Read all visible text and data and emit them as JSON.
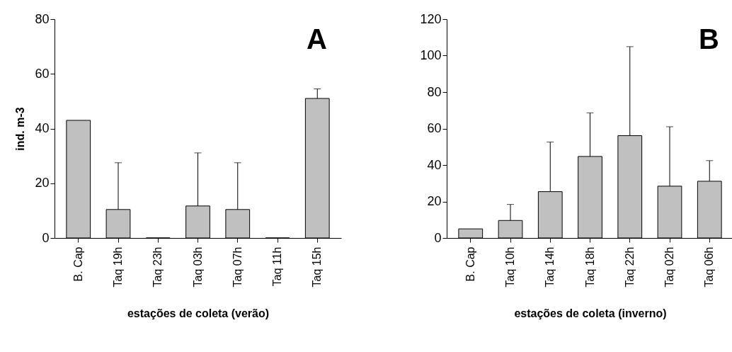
{
  "chart_data": [
    {
      "type": "bar",
      "annotations": [
        "A"
      ],
      "xlabel": "estações de coleta (verão)",
      "ylabel": "ind. m-3",
      "categories": [
        "B. Cap",
        "Taq 19h",
        "Taq 23h",
        "Taq 03h",
        "Taq 07h",
        "Taq 11h",
        "Taq 15h"
      ],
      "values": [
        43,
        10.4,
        0,
        11.7,
        10.4,
        0,
        51
      ],
      "errors": [
        null,
        [
          10.4,
          27.5
        ],
        null,
        [
          11.7,
          31.1
        ],
        [
          10.4,
          27.5
        ],
        null,
        [
          51,
          54.5
        ]
      ],
      "color": "#c0c0c0",
      "ylim": [
        0,
        80
      ],
      "yticks": [
        0,
        20,
        40,
        60,
        80
      ],
      "grid": false
    },
    {
      "type": "bar",
      "annotations": [
        "B"
      ],
      "xlabel": "estações de coleta (inverno)",
      "categories": [
        "B. Cap",
        "Taq 10h",
        "Taq 14h",
        "Taq 18h",
        "Taq 22h",
        "Taq 02h",
        "Taq 06h"
      ],
      "values": [
        5,
        9.6,
        25.4,
        44.7,
        56.1,
        28.4,
        31.1
      ],
      "errors": [
        null,
        [
          9.6,
          18.4
        ],
        [
          25.4,
          52.6
        ],
        [
          44.7,
          68.6
        ],
        [
          56.1,
          104.9
        ],
        [
          28.4,
          61
        ],
        [
          31.1,
          42.4
        ]
      ],
      "color": "#c0c0c0",
      "ylim": [
        0,
        120
      ],
      "yticks": [
        0,
        20,
        40,
        60,
        80,
        100,
        120
      ],
      "grid": false
    }
  ]
}
